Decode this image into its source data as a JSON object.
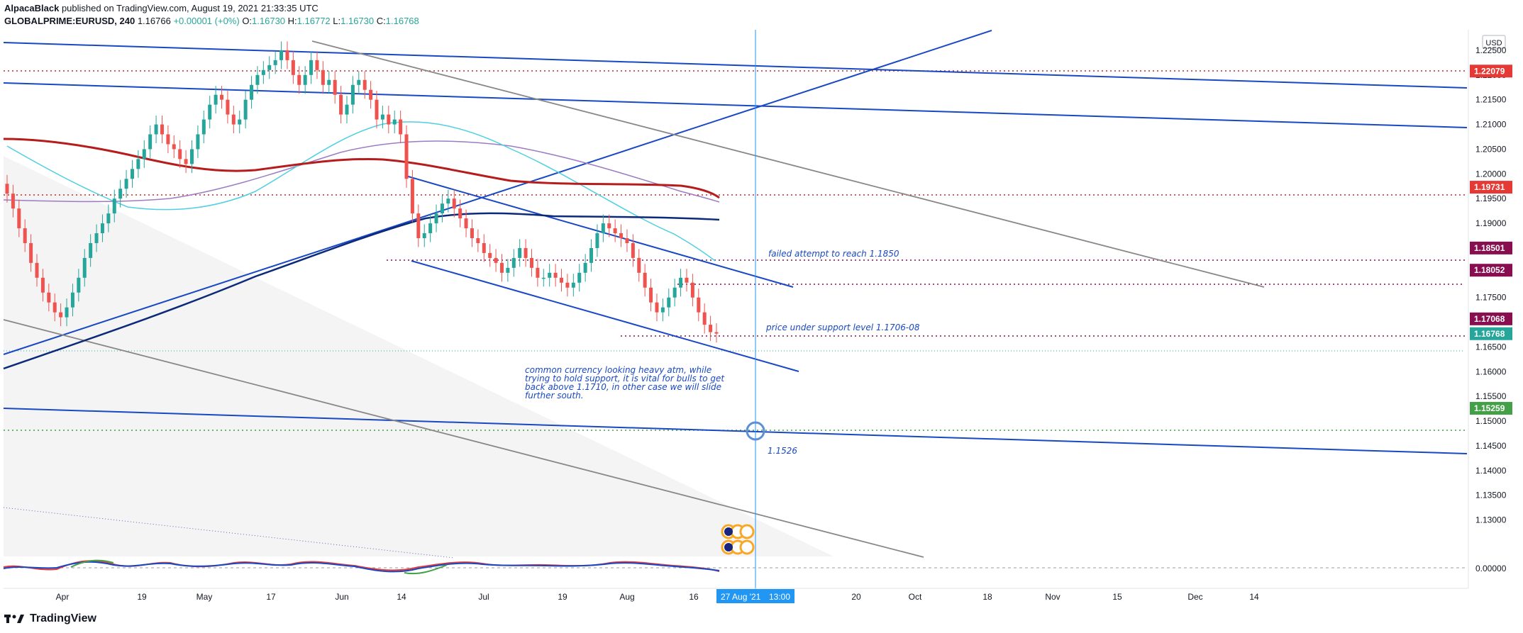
{
  "header": {
    "author": "AlpacaBlack",
    "published_text": "published on TradingView.com, August 19, 2021 21:33:35 UTC",
    "symbol": "GLOBALPRIME:EURUSD, 240",
    "last": "1.16766",
    "change": "+0.00001 (+0%)",
    "o_label": "O:",
    "o": "1.16730",
    "h_label": "H:",
    "h": "1.16772",
    "l_label": "L:",
    "l": "1.16730",
    "c_label": "C:",
    "c": "1.16768"
  },
  "footer": {
    "brand": "TradingView"
  },
  "colors": {
    "up": "#26a69a",
    "down": "#ef5350",
    "trend_blue": "#1848c4",
    "navy": "#0d2a7a",
    "grey_line": "#808080",
    "ma_red": "#b71c1c",
    "ma_purple": "#9c7cc4",
    "ma_cyan": "#4dd0e1",
    "crosshair": "#2196f3"
  },
  "chart_data": {
    "type": "line",
    "currency": "USD",
    "y_range": [
      1.1255,
      1.228
    ],
    "y_ticks": [
      "1.22500",
      "1.22000",
      "1.21500",
      "1.21000",
      "1.20500",
      "1.20000",
      "1.19500",
      "1.19000",
      "1.18500",
      "1.18000",
      "1.17500",
      "1.17000",
      "1.16500",
      "1.16000",
      "1.15500",
      "1.15000",
      "1.14500",
      "1.14000",
      "1.13500",
      "1.13000"
    ],
    "x_ticks": [
      "Apr",
      "19",
      "May",
      "17",
      "Jun",
      "14",
      "Jul",
      "19",
      "Aug",
      "16",
      "20",
      "Oct",
      "18",
      "Nov",
      "15",
      "Dec",
      "14"
    ],
    "crosshair_date_label": "27 Aug '21",
    "crosshair_time_label": "13:00",
    "price_labels": [
      {
        "text": "1.22079",
        "value": 1.22079,
        "color": "#e53935"
      },
      {
        "text": "1.19731",
        "value": 1.19731,
        "color": "#e53935"
      },
      {
        "text": "1.18501",
        "value": 1.18501,
        "color": "#880e4f"
      },
      {
        "text": "1.18052",
        "value": 1.18052,
        "color": "#880e4f"
      },
      {
        "text": "1.17068",
        "value": 1.17068,
        "color": "#880e4f"
      },
      {
        "text": "1.16768",
        "value": 1.16768,
        "color": "#26a69a"
      },
      {
        "text": "1.15259",
        "value": 1.15259,
        "color": "#43a047"
      }
    ],
    "annotations": [
      {
        "text": "failed attempt to reach 1.1850"
      },
      {
        "text": "price under support level 1.1706-08"
      },
      {
        "lines": [
          "common currency looking heavy atm, while",
          "trying to hold support, it is vital for bulls to get",
          "back above 1.1710, in other case we will slide",
          "further south."
        ]
      },
      {
        "text": "1.1526"
      }
    ],
    "oscillator": {
      "zero_label": "0.00000"
    },
    "series": [
      {
        "kind": "close",
        "values": [
          1.196,
          1.193,
          1.189,
          1.186,
          1.182,
          1.179,
          1.176,
          1.174,
          1.172,
          1.171,
          1.173,
          1.176,
          1.179,
          1.183,
          1.186,
          1.188,
          1.19,
          1.192,
          1.195,
          1.197,
          1.199,
          1.201,
          1.203,
          1.205,
          1.208,
          1.21,
          1.208,
          1.206,
          1.205,
          1.203,
          1.202,
          1.205,
          1.208,
          1.211,
          1.214,
          1.216,
          1.215,
          1.212,
          1.21,
          1.211,
          1.215,
          1.218,
          1.22,
          1.221,
          1.222,
          1.223,
          1.225,
          1.223,
          1.22,
          1.218,
          1.22,
          1.223,
          1.221,
          1.218,
          1.219,
          1.216,
          1.212,
          1.214,
          1.218,
          1.219,
          1.217,
          1.215,
          1.211,
          1.212,
          1.21,
          1.211,
          1.208,
          1.199,
          1.192,
          1.187,
          1.188,
          1.19,
          1.192,
          1.194,
          1.195,
          1.193,
          1.191,
          1.189,
          1.187,
          1.186,
          1.184,
          1.183,
          1.182,
          1.18,
          1.181,
          1.183,
          1.185,
          1.183,
          1.181,
          1.179,
          1.179,
          1.18,
          1.179,
          1.178,
          1.177,
          1.178,
          1.18,
          1.182,
          1.185,
          1.188,
          1.19,
          1.189,
          1.188,
          1.187,
          1.186,
          1.183,
          1.18,
          1.177,
          1.174,
          1.172,
          1.173,
          1.175,
          1.177,
          1.179,
          1.178,
          1.175,
          1.172,
          1.1695,
          1.168,
          1.1677
        ]
      }
    ]
  }
}
